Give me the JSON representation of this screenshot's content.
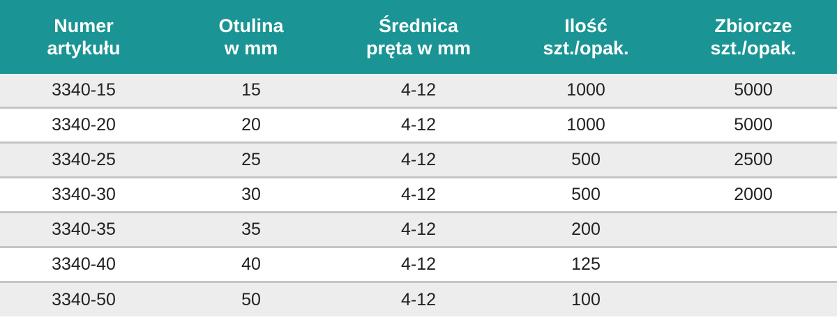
{
  "headers": [
    [
      "Numer",
      "artykułu"
    ],
    [
      "Otulina",
      "w mm"
    ],
    [
      "Średnica",
      "pręta w mm"
    ],
    [
      "Ilość",
      "szt./opak."
    ],
    [
      "Zbiorcze",
      "szt./opak."
    ]
  ],
  "rows": [
    [
      "3340-15",
      "15",
      "4-12",
      "1000",
      "5000"
    ],
    [
      "3340-20",
      "20",
      "4-12",
      "1000",
      "5000"
    ],
    [
      "3340-25",
      "25",
      "4-12",
      "500",
      "2500"
    ],
    [
      "3340-30",
      "30",
      "4-12",
      "500",
      "2000"
    ],
    [
      "3340-35",
      "35",
      "4-12",
      "200",
      ""
    ],
    [
      "3340-40",
      "40",
      "4-12",
      "125",
      ""
    ],
    [
      "3340-50",
      "50",
      "4-12",
      "100",
      ""
    ]
  ],
  "colors": {
    "header_bg": "#1a9494",
    "row_alt_bg": "#ededed",
    "separator": "#c4c4c4"
  }
}
